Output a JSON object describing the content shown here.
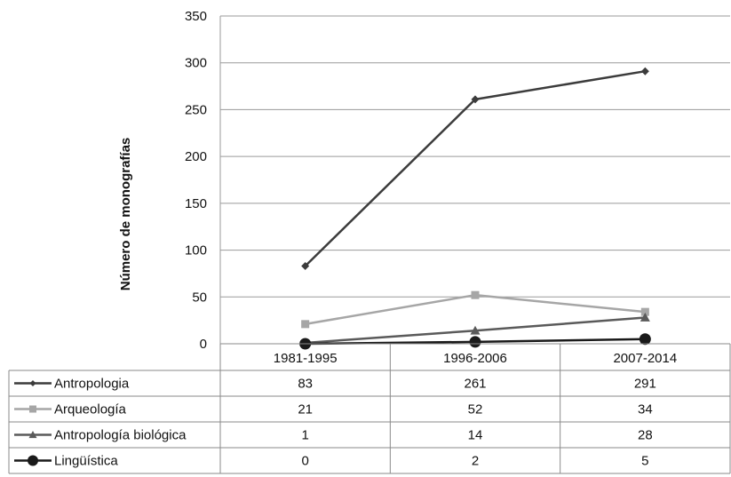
{
  "chart_data": {
    "type": "line",
    "title": "",
    "xlabel": "",
    "ylabel": "Número de monografías",
    "ylim": [
      0,
      350
    ],
    "yticks": [
      0,
      50,
      100,
      150,
      200,
      250,
      300,
      350
    ],
    "grid": true,
    "legend": "data-table",
    "categories": [
      "1981-1995",
      "1996-2006",
      "2007-2014"
    ],
    "series": [
      {
        "name": "Antropologia",
        "values": [
          83,
          261,
          291
        ],
        "color": "#3c3c3c",
        "marker": "diamond"
      },
      {
        "name": "Arqueología",
        "values": [
          21,
          52,
          34
        ],
        "color": "#a6a6a6",
        "marker": "square"
      },
      {
        "name": "Antropología biológica",
        "values": [
          1,
          14,
          28
        ],
        "color": "#5a5a5a",
        "marker": "triangle"
      },
      {
        "name": "Lingüística",
        "values": [
          0,
          2,
          5
        ],
        "color": "#1a1a1a",
        "marker": "circle"
      }
    ]
  }
}
